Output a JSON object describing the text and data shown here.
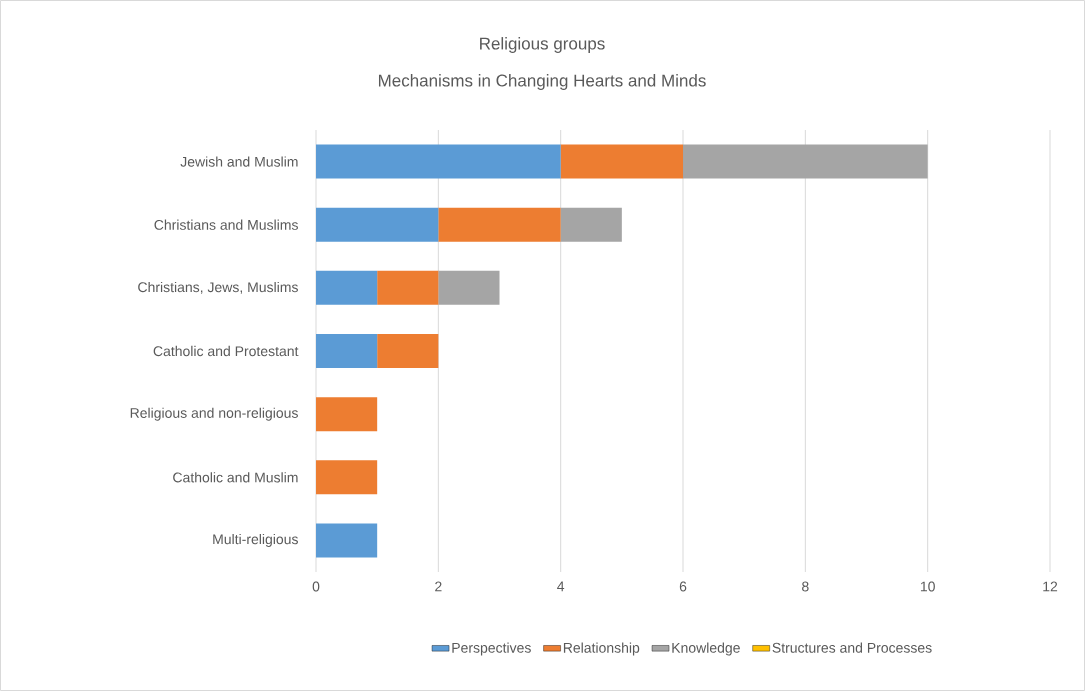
{
  "chart_data": {
    "type": "bar",
    "orientation": "horizontal",
    "stacked": true,
    "title": "Religious groups",
    "subtitle": "Mechanisms in Changing Hearts and Minds",
    "categories": [
      "Jewish and Muslim",
      "Christians and Muslims",
      "Christians, Jews, Muslims",
      "Catholic and Protestant",
      "Religious and non-religious",
      "Catholic and Muslim",
      "Multi-religious"
    ],
    "series": [
      {
        "name": "Perspectives",
        "color": "#5b9bd5",
        "values": [
          4,
          2,
          1,
          1,
          0,
          0,
          1
        ]
      },
      {
        "name": "Relationship",
        "color": "#ed7d31",
        "values": [
          2,
          2,
          1,
          1,
          1,
          1,
          0
        ]
      },
      {
        "name": "Knowledge",
        "color": "#a5a5a5",
        "values": [
          4,
          1,
          1,
          0,
          0,
          0,
          0
        ]
      },
      {
        "name": "Structures and Processes",
        "color": "#ffc000",
        "values": [
          0,
          0,
          0,
          0,
          0,
          0,
          0
        ]
      }
    ],
    "xlim": [
      0,
      12
    ],
    "xticks": [
      0,
      2,
      4,
      6,
      8,
      10,
      12
    ],
    "grid": "x",
    "legend": "bottom"
  }
}
